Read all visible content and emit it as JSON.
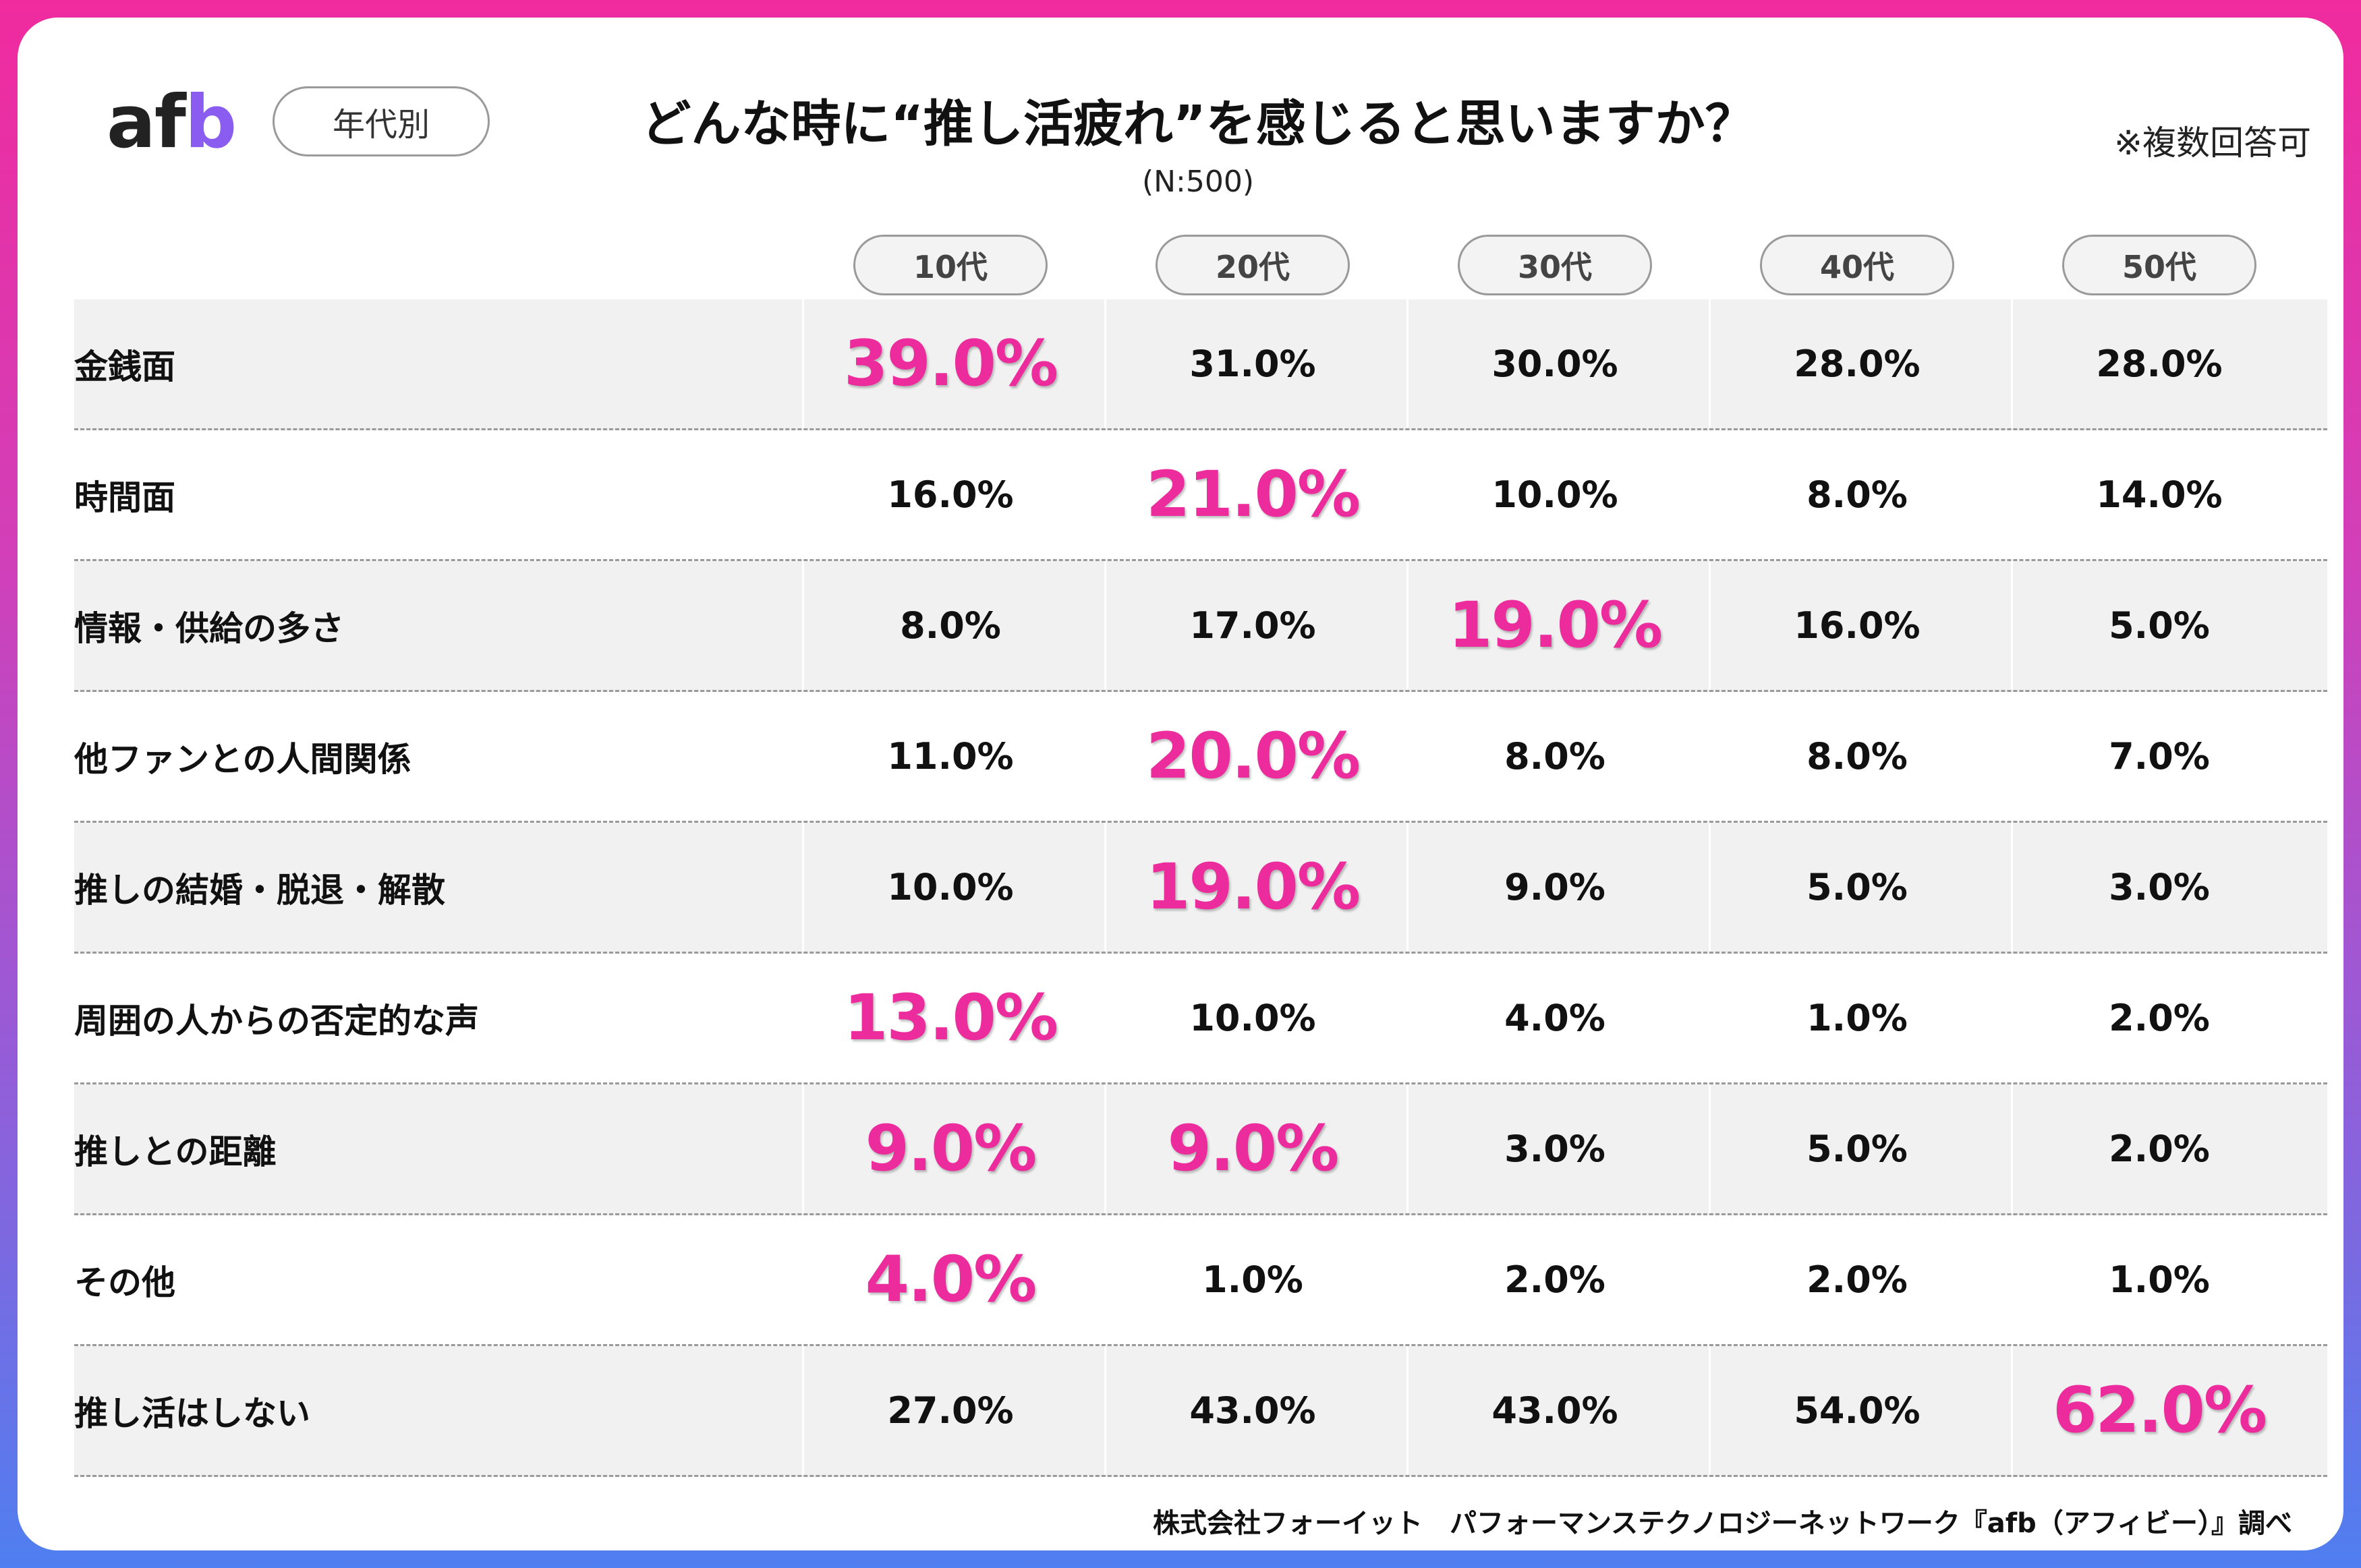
{
  "brand": {
    "logo_text_main": "af",
    "logo_text_accent": "b",
    "accent_color": "#ec2c9c"
  },
  "age_tag": "年代別",
  "note": "※複数回答可",
  "chart_data": {
    "type": "table",
    "title": "どんな時に“推し活疲れ”を感じると思いますか？",
    "subtitle": "(N:500)",
    "categories": [
      "10代",
      "20代",
      "30代",
      "40代",
      "50代"
    ],
    "unit": "%",
    "series": [
      {
        "name": "金銭面",
        "values": [
          39.0,
          31.0,
          30.0,
          28.0,
          28.0
        ],
        "display": [
          "39.0%",
          "31.0%",
          "30.0%",
          "28.0%",
          "28.0%"
        ],
        "highlight": [
          0
        ]
      },
      {
        "name": "時間面",
        "values": [
          16.0,
          21.0,
          10.0,
          8.0,
          14.0
        ],
        "display": [
          "16.0%",
          "21.0%",
          "10.0%",
          "8.0%",
          "14.0%"
        ],
        "highlight": [
          1
        ]
      },
      {
        "name": "情報・供給の多さ",
        "values": [
          8.0,
          17.0,
          19.0,
          16.0,
          5.0
        ],
        "display": [
          "8.0%",
          "17.0%",
          "19.0%",
          "16.0%",
          "5.0%"
        ],
        "highlight": [
          2
        ]
      },
      {
        "name": "他ファンとの人間関係",
        "values": [
          11.0,
          20.0,
          8.0,
          8.0,
          7.0
        ],
        "display": [
          "11.0%",
          "20.0%",
          "8.0%",
          "8.0%",
          "7.0%"
        ],
        "highlight": [
          1
        ]
      },
      {
        "name": "推しの結婚・脱退・解散",
        "values": [
          10.0,
          19.0,
          9.0,
          5.0,
          3.0
        ],
        "display": [
          "10.0%",
          "19.0%",
          "9.0%",
          "5.0%",
          "3.0%"
        ],
        "highlight": [
          1
        ]
      },
      {
        "name": "周囲の人からの否定的な声",
        "values": [
          13.0,
          10.0,
          4.0,
          1.0,
          2.0
        ],
        "display": [
          "13.0%",
          "10.0%",
          "4.0%",
          "1.0%",
          "2.0%"
        ],
        "highlight": [
          0
        ]
      },
      {
        "name": "推しとの距離",
        "values": [
          9.0,
          9.0,
          3.0,
          5.0,
          2.0
        ],
        "display": [
          "9.0%",
          "9.0%",
          "3.0%",
          "5.0%",
          "2.0%"
        ],
        "highlight": [
          0,
          1
        ]
      },
      {
        "name": "その他",
        "values": [
          4.0,
          1.0,
          2.0,
          2.0,
          1.0
        ],
        "display": [
          "4.0%",
          "1.0%",
          "2.0%",
          "2.0%",
          "1.0%"
        ],
        "highlight": [
          0
        ]
      },
      {
        "name": "推し活はしない",
        "values": [
          27.0,
          43.0,
          43.0,
          54.0,
          62.0
        ],
        "display": [
          "27.0%",
          "43.0%",
          "43.0%",
          "54.0%",
          "62.0%"
        ],
        "highlight": [
          4
        ]
      }
    ]
  },
  "source": "株式会社フォーイット　パフォーマンステクノロジーネットワーク『afb（アフィビー）』調べ"
}
